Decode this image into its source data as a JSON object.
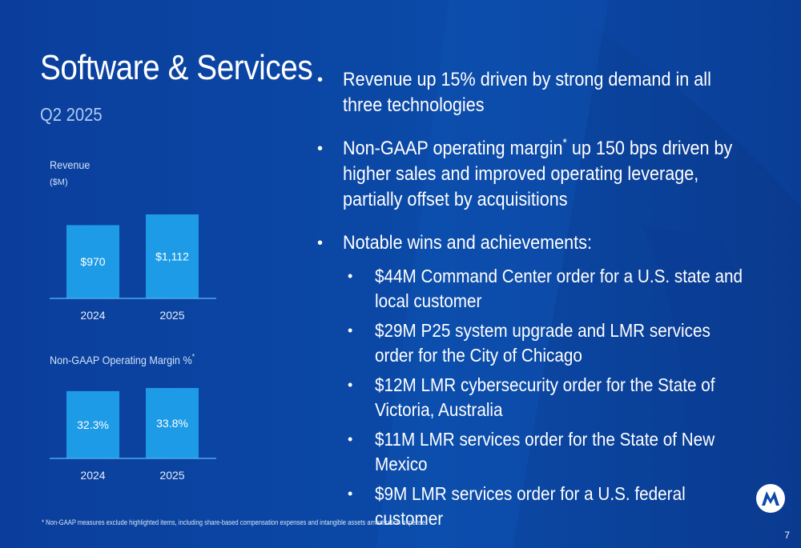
{
  "slide": {
    "title": "Software & Services",
    "subtitle": "Q2 2025",
    "footnote": "* Non-GAAP measures exclude highlighted items, including share-based compensation expenses and intangible assets amortization expense",
    "page_number": "7",
    "logo_icon": "motorola-batwing-logo"
  },
  "bullets": [
    {
      "text": "Revenue up 15% driven by strong demand in all three technologies"
    },
    {
      "text_before": "Non-GAAP operating margin",
      "sup": "*",
      "text_after": " up 150 bps driven by higher sales and improved operating leverage, partially offset by acquisitions"
    },
    {
      "text": "Notable wins and achievements:"
    }
  ],
  "sub_bullets": [
    "$44M Command Center order for a U.S. state and local customer",
    "$29M P25 system upgrade and LMR services order for the City of Chicago",
    "$12M LMR cybersecurity order for the State of Victoria, Australia",
    "$11M LMR services order for the State of New Mexico",
    "$9M LMR services order for a U.S. federal customer"
  ],
  "charts": {
    "revenue_label": "Revenue",
    "revenue_unit": "($M)",
    "margin_label": "Non-GAAP Operating Margin %",
    "margin_label_sup": "*"
  },
  "colors": {
    "background": "#0b4aa8",
    "bar": "#1e9be6",
    "axis": "#4aa8ee",
    "accent_text": "#aecdf2"
  },
  "chart_data": [
    {
      "type": "bar",
      "title": "Revenue",
      "ylabel": "($M)",
      "categories": [
        "2024",
        "2025"
      ],
      "values": [
        970,
        1112
      ],
      "data_labels": [
        "$970",
        "$1,112"
      ],
      "ylim": [
        0,
        1112
      ]
    },
    {
      "type": "bar",
      "title": "Non-GAAP Operating Margin %*",
      "categories": [
        "2024",
        "2025"
      ],
      "values": [
        32.3,
        33.8
      ],
      "data_labels": [
        "32.3%",
        "33.8%"
      ],
      "ylim": [
        0,
        33.8
      ]
    }
  ]
}
